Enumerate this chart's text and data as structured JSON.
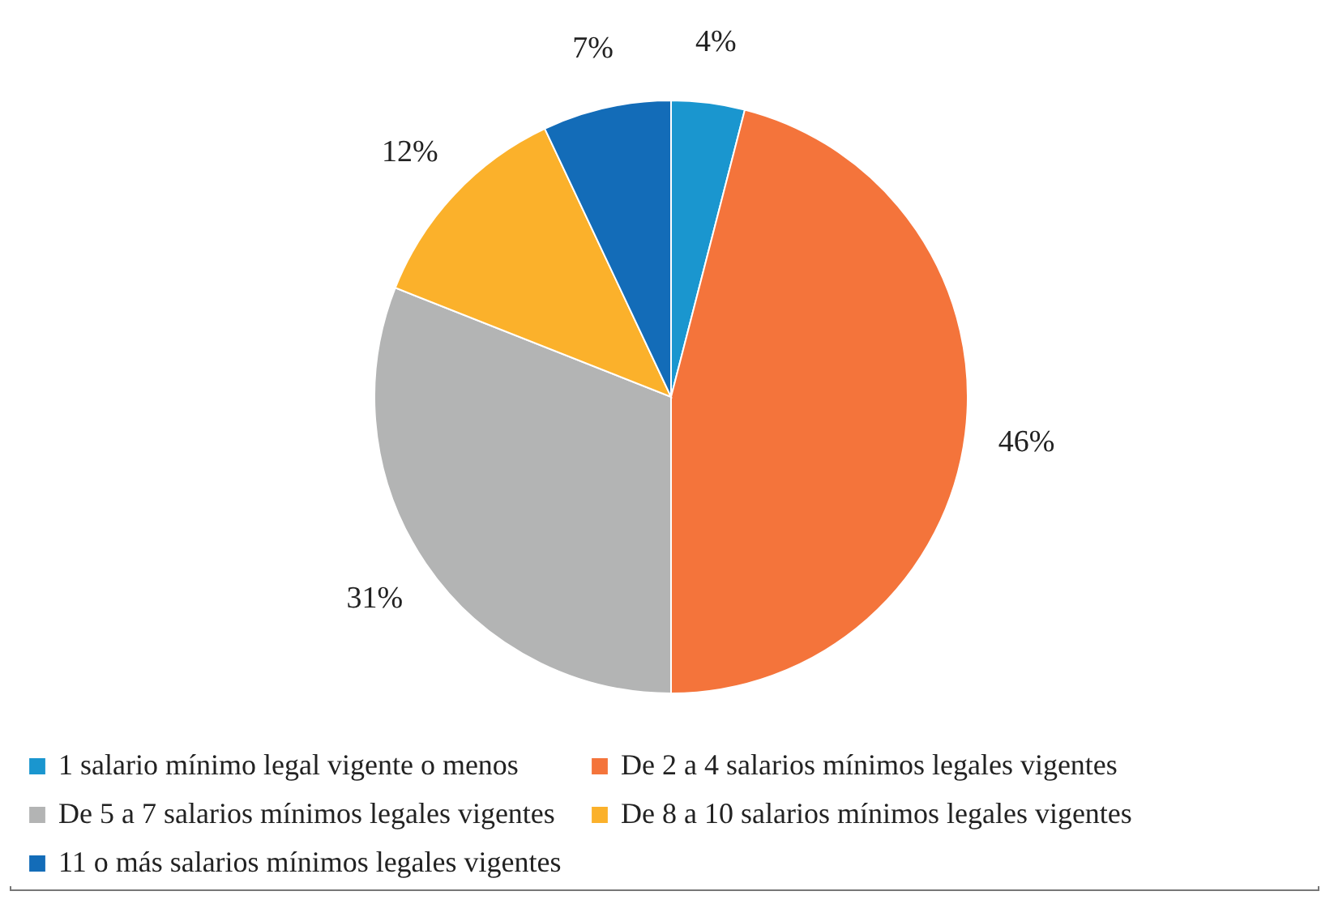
{
  "chart_data": {
    "type": "pie",
    "categories": [
      "1 salario mínimo legal vigente o menos",
      "De 2 a 4 salarios mínimos legales vigentes",
      "De 5 a 7 salarios mínimos legales vigentes",
      "De 8 a 10 salarios mínimos legales vigentes",
      "11 o más salarios mínimos legales vigentes"
    ],
    "values": [
      4,
      46,
      31,
      12,
      7
    ],
    "colors": [
      "#1a96cf",
      "#f4743b",
      "#b3b4b4",
      "#fbb12b",
      "#136cb8"
    ],
    "value_labels": [
      "4%",
      "46%",
      "31%",
      "12%",
      "7%"
    ],
    "legend": "bottom"
  }
}
